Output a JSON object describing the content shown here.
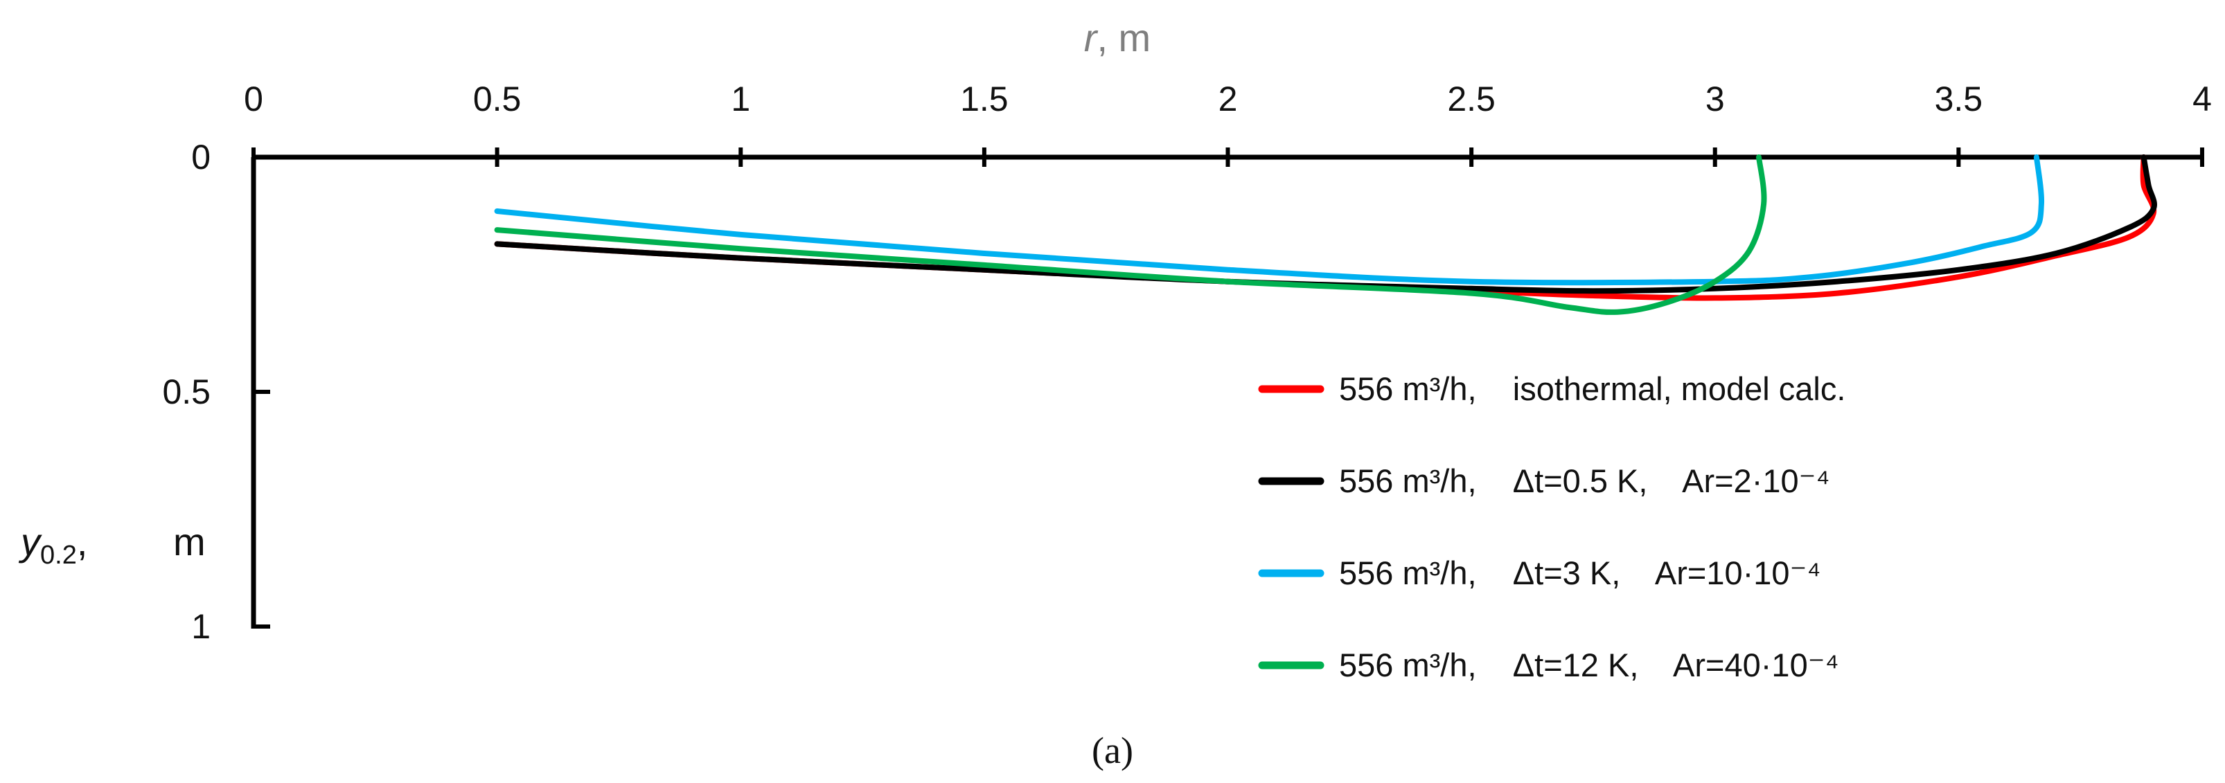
{
  "chart_data": {
    "type": "line",
    "x_axis": {
      "label_var": "r",
      "label_unit": ", m",
      "range": [
        0,
        4
      ],
      "ticks": [
        0,
        0.5,
        1,
        1.5,
        2,
        2.5,
        3,
        3.5,
        4
      ],
      "tick_labels": [
        "0",
        "0.5",
        "1",
        "1.5",
        "2",
        "2.5",
        "3",
        "3.5",
        "4"
      ],
      "position": "top"
    },
    "y_axis": {
      "label_var": "y",
      "label_sub": "0.2",
      "label_comma": ",",
      "label_unit": "m",
      "range": [
        0,
        1
      ],
      "inverted": true,
      "ticks": [
        0,
        0.5,
        1
      ],
      "tick_labels": [
        "0",
        "0.5",
        "1"
      ]
    },
    "grid": false,
    "legend_position": "bottom-right",
    "series": [
      {
        "name": "556 m³/h,    isothermal, model calc.",
        "color": "#ff0000",
        "points": [
          [
            0.5,
            0.185
          ],
          [
            1.0,
            0.215
          ],
          [
            1.5,
            0.24
          ],
          [
            2.0,
            0.265
          ],
          [
            2.5,
            0.285
          ],
          [
            2.75,
            0.295
          ],
          [
            3.0,
            0.3
          ],
          [
            3.25,
            0.29
          ],
          [
            3.5,
            0.255
          ],
          [
            3.7,
            0.21
          ],
          [
            3.85,
            0.17
          ],
          [
            3.9,
            0.12
          ],
          [
            3.88,
            0.06
          ],
          [
            3.88,
            0.0
          ]
        ]
      },
      {
        "name": "556 m³/h,    Δt=0.5 K,    Ar=2·10⁻⁴",
        "color": "#000000",
        "points": [
          [
            0.5,
            0.185
          ],
          [
            1.0,
            0.215
          ],
          [
            1.5,
            0.24
          ],
          [
            2.0,
            0.265
          ],
          [
            2.5,
            0.28
          ],
          [
            2.75,
            0.285
          ],
          [
            3.0,
            0.28
          ],
          [
            3.25,
            0.265
          ],
          [
            3.5,
            0.24
          ],
          [
            3.7,
            0.205
          ],
          [
            3.85,
            0.15
          ],
          [
            3.9,
            0.11
          ],
          [
            3.89,
            0.06
          ],
          [
            3.88,
            0.0
          ]
        ]
      },
      {
        "name": "556 m³/h,    Δt=3 K,    Ar=10·10⁻⁴",
        "color": "#00b0f0",
        "points": [
          [
            0.5,
            0.115
          ],
          [
            1.0,
            0.165
          ],
          [
            1.5,
            0.205
          ],
          [
            2.0,
            0.24
          ],
          [
            2.5,
            0.265
          ],
          [
            3.0,
            0.265
          ],
          [
            3.2,
            0.255
          ],
          [
            3.4,
            0.225
          ],
          [
            3.55,
            0.19
          ],
          [
            3.65,
            0.16
          ],
          [
            3.67,
            0.1
          ],
          [
            3.66,
            0.0
          ]
        ]
      },
      {
        "name": "556 m³/h,    Δt=12 K,    Ar=40·10⁻⁴",
        "color": "#00b050",
        "points": [
          [
            0.5,
            0.155
          ],
          [
            1.0,
            0.195
          ],
          [
            1.5,
            0.23
          ],
          [
            2.0,
            0.265
          ],
          [
            2.5,
            0.29
          ],
          [
            2.7,
            0.32
          ],
          [
            2.8,
            0.33
          ],
          [
            2.9,
            0.31
          ],
          [
            3.0,
            0.265
          ],
          [
            3.07,
            0.2
          ],
          [
            3.1,
            0.1
          ],
          [
            3.09,
            0.0
          ]
        ]
      }
    ]
  },
  "caption": "(a)"
}
